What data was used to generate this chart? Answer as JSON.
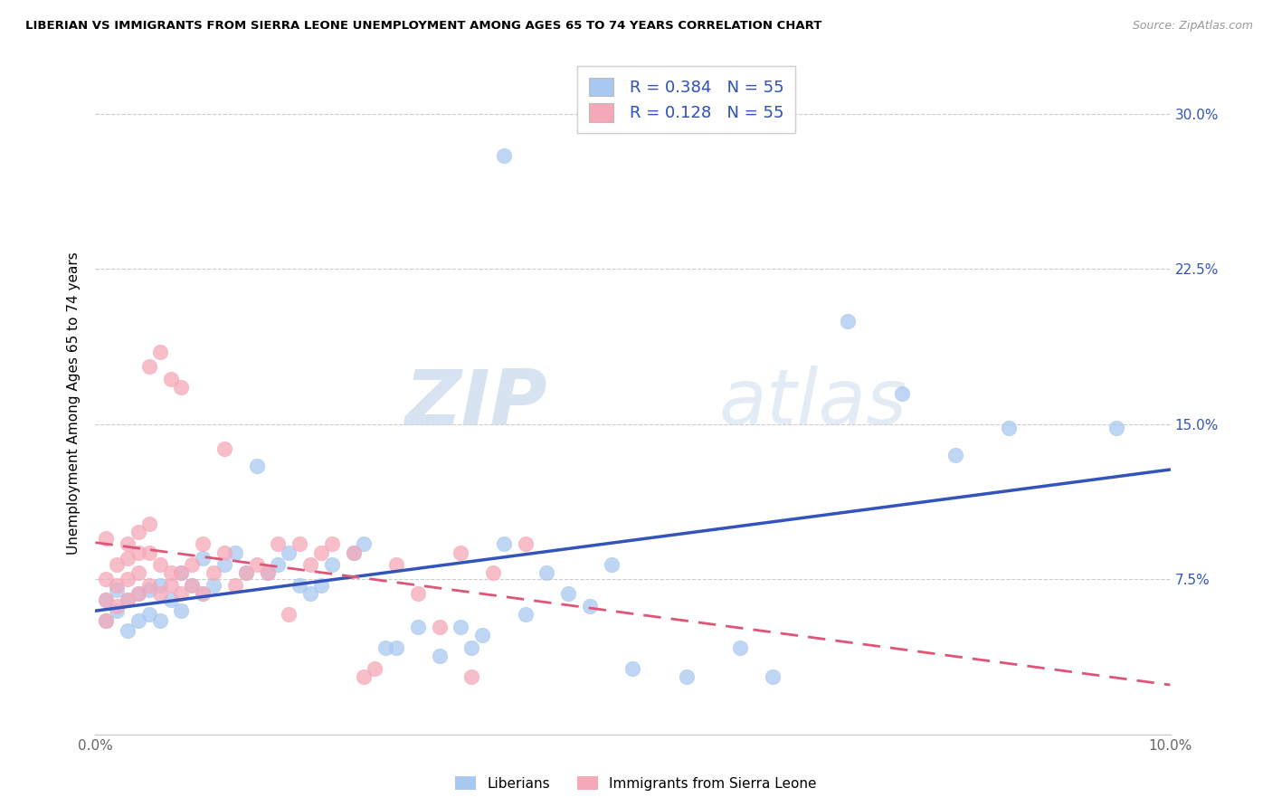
{
  "title": "LIBERIAN VS IMMIGRANTS FROM SIERRA LEONE UNEMPLOYMENT AMONG AGES 65 TO 74 YEARS CORRELATION CHART",
  "source": "Source: ZipAtlas.com",
  "ylabel": "Unemployment Among Ages 65 to 74 years",
  "xlim": [
    0.0,
    0.1
  ],
  "ylim": [
    0.0,
    0.32
  ],
  "y_ticks": [
    0.0,
    0.075,
    0.15,
    0.225,
    0.3
  ],
  "y_tick_labels": [
    "",
    "7.5%",
    "15.0%",
    "22.5%",
    "30.0%"
  ],
  "x_ticks": [
    0.0,
    0.02,
    0.04,
    0.06,
    0.08,
    0.1
  ],
  "x_tick_labels": [
    "0.0%",
    "",
    "",
    "",
    "",
    "10.0%"
  ],
  "blue_color": "#a8c8f0",
  "pink_color": "#f5a8b8",
  "blue_line_color": "#3355bb",
  "pink_line_color": "#dd5577",
  "blue_label": "Liberians",
  "pink_label": "Immigrants from Sierra Leone",
  "R_blue": 0.384,
  "N_blue": 55,
  "R_pink": 0.128,
  "N_pink": 55,
  "watermark_zip": "ZIP",
  "watermark_atlas": "atlas",
  "blue_scatter_x": [
    0.001,
    0.001,
    0.002,
    0.002,
    0.003,
    0.003,
    0.004,
    0.004,
    0.005,
    0.005,
    0.006,
    0.006,
    0.007,
    0.008,
    0.008,
    0.009,
    0.01,
    0.01,
    0.011,
    0.012,
    0.013,
    0.014,
    0.015,
    0.016,
    0.017,
    0.018,
    0.019,
    0.02,
    0.021,
    0.022,
    0.024,
    0.025,
    0.027,
    0.028,
    0.03,
    0.032,
    0.034,
    0.035,
    0.036,
    0.038,
    0.038,
    0.04,
    0.042,
    0.044,
    0.046,
    0.048,
    0.05,
    0.055,
    0.06,
    0.063,
    0.07,
    0.075,
    0.08,
    0.085,
    0.095
  ],
  "blue_scatter_y": [
    0.055,
    0.065,
    0.06,
    0.07,
    0.05,
    0.065,
    0.055,
    0.068,
    0.058,
    0.07,
    0.055,
    0.072,
    0.065,
    0.06,
    0.078,
    0.072,
    0.068,
    0.085,
    0.072,
    0.082,
    0.088,
    0.078,
    0.13,
    0.078,
    0.082,
    0.088,
    0.072,
    0.068,
    0.072,
    0.082,
    0.088,
    0.092,
    0.042,
    0.042,
    0.052,
    0.038,
    0.052,
    0.042,
    0.048,
    0.092,
    0.28,
    0.058,
    0.078,
    0.068,
    0.062,
    0.082,
    0.032,
    0.028,
    0.042,
    0.028,
    0.2,
    0.165,
    0.135,
    0.148,
    0.148
  ],
  "pink_scatter_x": [
    0.001,
    0.001,
    0.001,
    0.001,
    0.002,
    0.002,
    0.002,
    0.003,
    0.003,
    0.003,
    0.003,
    0.004,
    0.004,
    0.004,
    0.004,
    0.005,
    0.005,
    0.005,
    0.005,
    0.006,
    0.006,
    0.006,
    0.007,
    0.007,
    0.007,
    0.008,
    0.008,
    0.008,
    0.009,
    0.009,
    0.01,
    0.01,
    0.011,
    0.012,
    0.012,
    0.013,
    0.014,
    0.015,
    0.016,
    0.017,
    0.018,
    0.019,
    0.02,
    0.021,
    0.022,
    0.024,
    0.025,
    0.026,
    0.028,
    0.03,
    0.032,
    0.034,
    0.035,
    0.037,
    0.04
  ],
  "pink_scatter_y": [
    0.095,
    0.075,
    0.065,
    0.055,
    0.082,
    0.072,
    0.062,
    0.065,
    0.075,
    0.085,
    0.092,
    0.068,
    0.078,
    0.088,
    0.098,
    0.072,
    0.088,
    0.102,
    0.178,
    0.068,
    0.082,
    0.185,
    0.072,
    0.078,
    0.172,
    0.068,
    0.078,
    0.168,
    0.072,
    0.082,
    0.068,
    0.092,
    0.078,
    0.088,
    0.138,
    0.072,
    0.078,
    0.082,
    0.078,
    0.092,
    0.058,
    0.092,
    0.082,
    0.088,
    0.092,
    0.088,
    0.028,
    0.032,
    0.082,
    0.068,
    0.052,
    0.088,
    0.028,
    0.078,
    0.092
  ]
}
